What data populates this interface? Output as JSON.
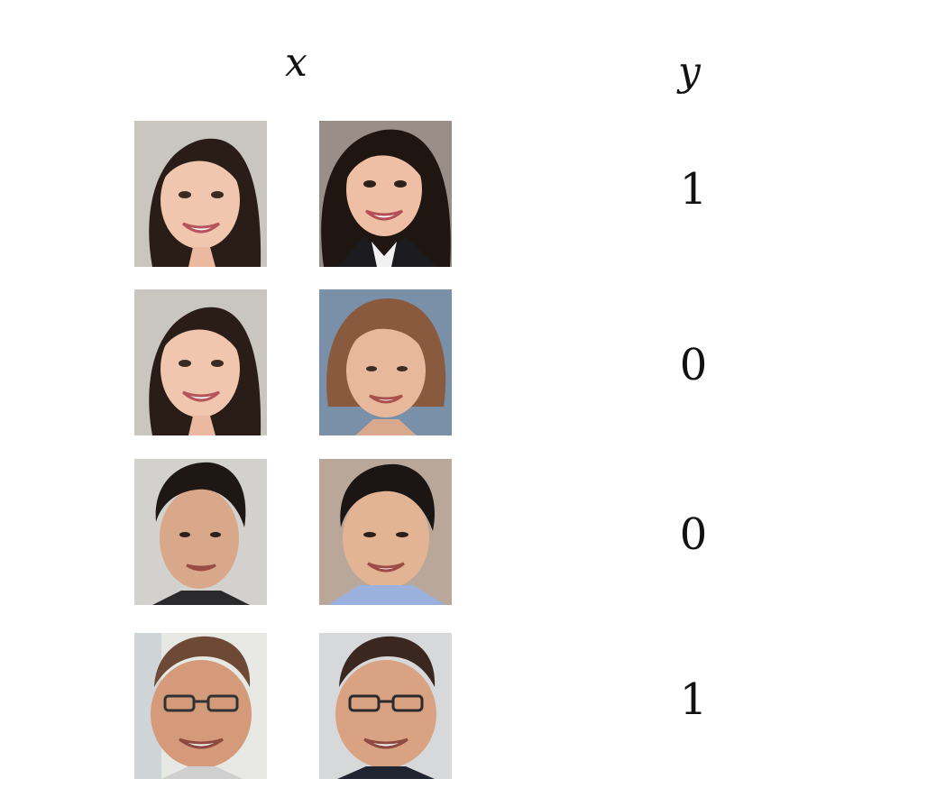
{
  "headers": {
    "x": "x",
    "y": "y"
  },
  "rows": [
    {
      "label": "1",
      "face_a": "smiling-woman-long-dark-hair-icon",
      "face_b": "smiling-woman-dark-hair-blazer-icon"
    },
    {
      "label": "0",
      "face_a": "smiling-woman-long-dark-hair-icon",
      "face_b": "smiling-older-woman-short-hair-icon"
    },
    {
      "label": "0",
      "face_a": "smiling-man-short-dark-hair-icon",
      "face_b": "smiling-man-dark-hair-blue-shirt-icon"
    },
    {
      "label": "1",
      "face_a": "smiling-man-glasses-icon",
      "face_b": "smiling-man-glasses-icon"
    }
  ],
  "colors": {
    "background": "#ffffff",
    "text": "#111111"
  }
}
